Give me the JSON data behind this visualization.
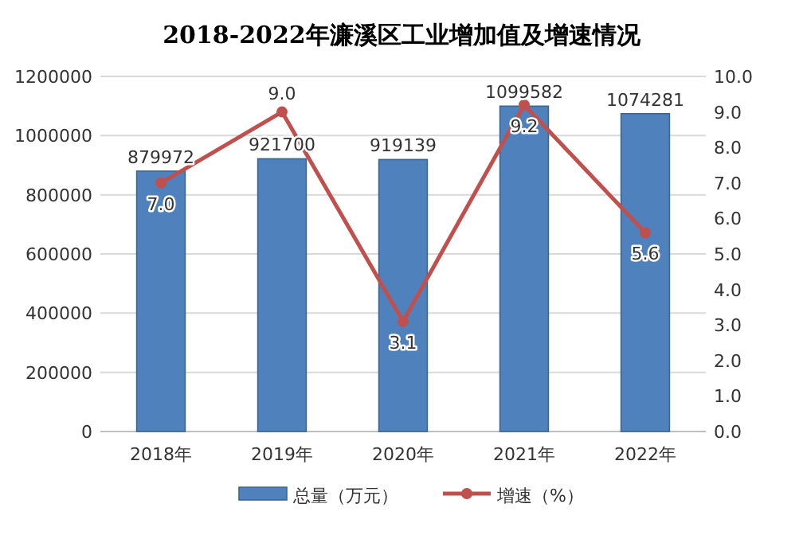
{
  "chart_data": {
    "type": "bar",
    "title": "2018-2022年濂溪区工业增加值及增速情况",
    "categories": [
      "2018年",
      "2019年",
      "2020年",
      "2021年",
      "2022年"
    ],
    "series": [
      {
        "name": "总量（万元）",
        "color": "#4f81bd",
        "values": [
          879972,
          921700,
          919139,
          1099582,
          1074281
        ]
      },
      {
        "name": "增速（%）",
        "type": "line",
        "axis": "y2",
        "color": "#c0504d",
        "marker": "circle",
        "values": [
          7.0,
          9.0,
          3.1,
          9.2,
          5.6
        ],
        "value_labels": [
          "7.0",
          "9.0",
          "3.1",
          "9.2",
          "5.6"
        ]
      }
    ],
    "data_labels": true,
    "ylim": [
      0,
      1200000
    ],
    "yticks": [
      0,
      200000,
      400000,
      600000,
      800000,
      1000000,
      1200000
    ],
    "y2lim": [
      0,
      10
    ],
    "y2ticks": [
      {
        "value": 0,
        "label": "0.0"
      },
      {
        "value": 1,
        "label": "1.0"
      },
      {
        "value": 2,
        "label": "2.0"
      },
      {
        "value": 3,
        "label": "3.0"
      },
      {
        "value": 4,
        "label": "4.0"
      },
      {
        "value": 5,
        "label": "5.0"
      },
      {
        "value": 6,
        "label": "6.0"
      },
      {
        "value": 7,
        "label": "7.0"
      },
      {
        "value": 8,
        "label": "8.0"
      },
      {
        "value": 9,
        "label": "9.0"
      },
      {
        "value": 10,
        "label": "10.0"
      }
    ],
    "grid": "y",
    "legend": "bottom"
  }
}
